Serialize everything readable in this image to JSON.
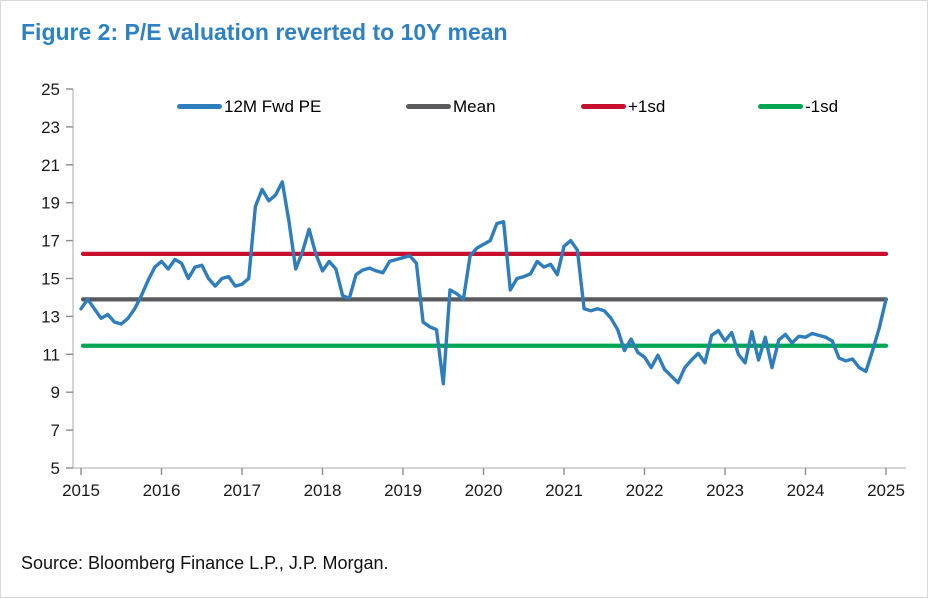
{
  "title": "Figure 2: P/E valuation reverted to 10Y mean",
  "source": "Source: Bloomberg Finance L.P., J.P. Morgan.",
  "colors": {
    "title_blue": "#2C82C4",
    "pe_blue": "#2E7DBC",
    "mean_gray": "#5A5A5C",
    "plus1sd_red": "#C8102E",
    "minus1sd_green": "#00A651",
    "axis_line": "#C6C6C6",
    "tick_mark": "#8C8C8C",
    "tick_text": "#1A1A1A"
  },
  "chart_data": {
    "type": "line",
    "title": "Figure 2: P/E valuation reverted to 10Y mean",
    "xlabel": "",
    "ylabel": "",
    "xlim": [
      2015,
      2025
    ],
    "ylim": [
      5,
      25
    ],
    "y_ticks": [
      5,
      7,
      9,
      11,
      13,
      15,
      17,
      19,
      21,
      23,
      25
    ],
    "x_ticks": [
      2015,
      2016,
      2017,
      2018,
      2019,
      2020,
      2021,
      2022,
      2023,
      2024,
      2025
    ],
    "grid": false,
    "legend_position": "top",
    "x_start_year": 2015,
    "x_step": "monthly",
    "series": [
      {
        "name": "12M Fwd PE",
        "type": "line",
        "color_key": "pe_blue",
        "values_by_year": [
          [
            13.4,
            13.9,
            13.4,
            12.9,
            13.1,
            12.7,
            12.6,
            12.9,
            13.4,
            14.1,
            14.9,
            15.6
          ],
          [
            15.9,
            15.5,
            16.0,
            15.8,
            15.0,
            15.6,
            15.7,
            15.0,
            14.6,
            15.0,
            15.1,
            14.6
          ],
          [
            14.7,
            15.0,
            18.8,
            19.7,
            19.1,
            19.4,
            20.1,
            18.0,
            15.5,
            16.4,
            17.6,
            16.3
          ],
          [
            15.4,
            15.9,
            15.5,
            14.1,
            13.95,
            15.2,
            15.45,
            15.55,
            15.4,
            15.3,
            15.9,
            16.0
          ],
          [
            16.1,
            16.2,
            15.8,
            12.7,
            12.45,
            12.3,
            9.45,
            14.4,
            14.2,
            13.9,
            16.2,
            16.6
          ],
          [
            16.8,
            17.0,
            17.9,
            18.0,
            14.4,
            15.0,
            15.1,
            15.25,
            15.9,
            15.6,
            15.75,
            15.2
          ],
          [
            16.7,
            17.0,
            16.5,
            13.4,
            13.3,
            13.4,
            13.3,
            12.9,
            12.3,
            11.2,
            11.8,
            11.1
          ],
          [
            10.85,
            10.3,
            10.95,
            10.2,
            9.85,
            9.5,
            10.3,
            10.7,
            11.05,
            10.55,
            12.0,
            12.25
          ],
          [
            11.7,
            12.15,
            11.0,
            10.55,
            12.2,
            10.7,
            11.9,
            10.3,
            11.75,
            12.05,
            11.6,
            11.95
          ],
          [
            11.9,
            12.1,
            12.0,
            11.9,
            11.7,
            10.8,
            10.65,
            10.75,
            10.3,
            10.1,
            11.2,
            12.4
          ],
          [
            13.9
          ]
        ]
      },
      {
        "name": "Mean",
        "type": "hline",
        "color_key": "mean_gray",
        "value": 13.9
      },
      {
        "name": "+1sd",
        "type": "hline",
        "color_key": "plus1sd_red",
        "value": 16.3
      },
      {
        "name": "-1sd",
        "type": "hline",
        "color_key": "minus1sd_green",
        "value": 11.45
      }
    ]
  }
}
